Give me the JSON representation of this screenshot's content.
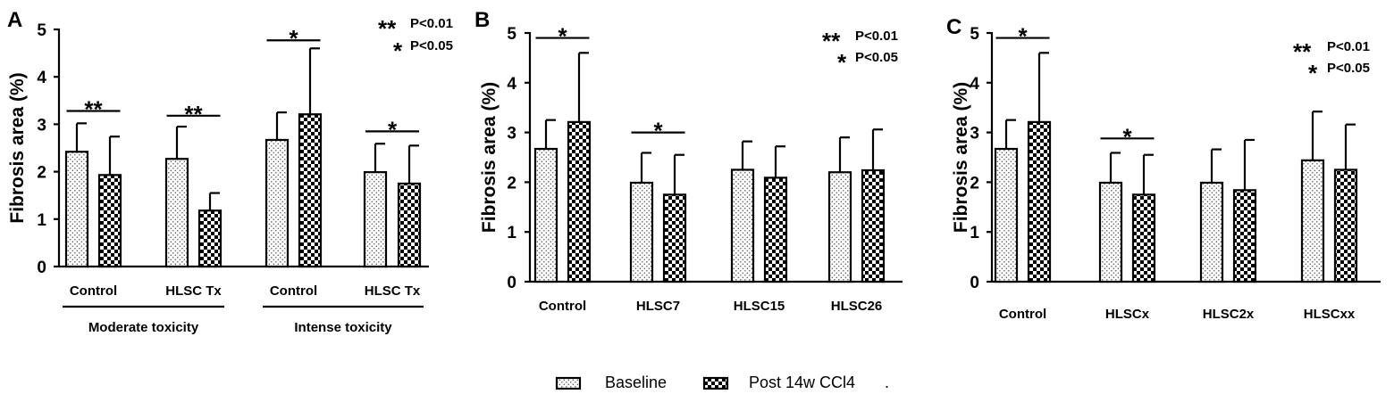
{
  "legend": {
    "baseline_label": "Baseline",
    "post_label": "Post 14w CCl4",
    "trailing_mark": "."
  },
  "chart_data": [
    {
      "panel": "A",
      "type": "bar",
      "ylabel": "Fibrosis area (%)",
      "ylim": [
        0,
        5
      ],
      "yticks": [
        "0",
        "1",
        "2",
        "3",
        "4",
        "5"
      ],
      "categories": [
        "Control",
        "HLSC Tx",
        "Control",
        "HLSC Tx"
      ],
      "groups": [
        {
          "label": "Moderate toxicity",
          "categories": [
            0,
            1
          ]
        },
        {
          "label": "Intense toxicity",
          "categories": [
            2,
            3
          ]
        }
      ],
      "series": [
        {
          "name": "Baseline",
          "pattern": "dots",
          "values": [
            2.42,
            2.27,
            2.67,
            1.99
          ],
          "sd": [
            0.6,
            0.68,
            0.58,
            0.6
          ]
        },
        {
          "name": "Post 14w CCl4",
          "pattern": "checker",
          "values": [
            1.93,
            1.18,
            3.21,
            1.75
          ],
          "sd": [
            0.81,
            0.37,
            1.39,
            0.8
          ]
        }
      ],
      "significance": [
        {
          "category": 0,
          "label": "**",
          "y": 3.28
        },
        {
          "category": 1,
          "label": "**",
          "y": 3.18
        },
        {
          "category": 2,
          "label": "*",
          "y": 4.77
        },
        {
          "category": 3,
          "label": "*",
          "y": 2.85
        }
      ],
      "p_legend": [
        {
          "star": "**",
          "text": "P<0.01"
        },
        {
          "star": "*",
          "text": "P<0.05"
        }
      ]
    },
    {
      "panel": "B",
      "type": "bar",
      "ylabel": "Fibrosis area (%)",
      "ylim": [
        0,
        5
      ],
      "yticks": [
        "0",
        "1",
        "2",
        "3",
        "4",
        "5"
      ],
      "categories": [
        "Control",
        "HLSC7",
        "HLSC15",
        "HLSC26"
      ],
      "series": [
        {
          "name": "Baseline",
          "pattern": "dots",
          "values": [
            2.67,
            1.99,
            2.25,
            2.2
          ],
          "sd": [
            0.58,
            0.6,
            0.57,
            0.7
          ]
        },
        {
          "name": "Post 14w CCl4",
          "pattern": "checker",
          "values": [
            3.21,
            1.75,
            2.09,
            2.24
          ],
          "sd": [
            1.39,
            0.8,
            0.63,
            0.82
          ]
        }
      ],
      "significance": [
        {
          "category": 0,
          "label": "*",
          "y": 4.9
        },
        {
          "category": 1,
          "label": "*",
          "y": 3.0
        }
      ],
      "p_legend": [
        {
          "star": "**",
          "text": "P<0.01"
        },
        {
          "star": "*",
          "text": "P<0.05"
        }
      ]
    },
    {
      "panel": "C",
      "type": "bar",
      "ylabel": "Fibrosis area (%)",
      "ylim": [
        0,
        5
      ],
      "yticks": [
        "0",
        "1",
        "2",
        "3",
        "4",
        "5"
      ],
      "categories": [
        "Control",
        "HLSCx",
        "HLSC2x",
        "HLSCxx"
      ],
      "series": [
        {
          "name": "Baseline",
          "pattern": "dots",
          "values": [
            2.67,
            1.99,
            1.99,
            2.44
          ],
          "sd": [
            0.58,
            0.6,
            0.67,
            0.98
          ]
        },
        {
          "name": "Post 14w CCl4",
          "pattern": "checker",
          "values": [
            3.21,
            1.75,
            1.84,
            2.25
          ],
          "sd": [
            1.39,
            0.8,
            1.01,
            0.91
          ]
        }
      ],
      "significance": [
        {
          "category": 0,
          "label": "*",
          "y": 4.9
        },
        {
          "category": 1,
          "label": "*",
          "y": 2.88
        }
      ],
      "p_legend": [
        {
          "star": "**",
          "text": "P<0.01"
        },
        {
          "star": "*",
          "text": "P<0.05"
        }
      ]
    }
  ]
}
